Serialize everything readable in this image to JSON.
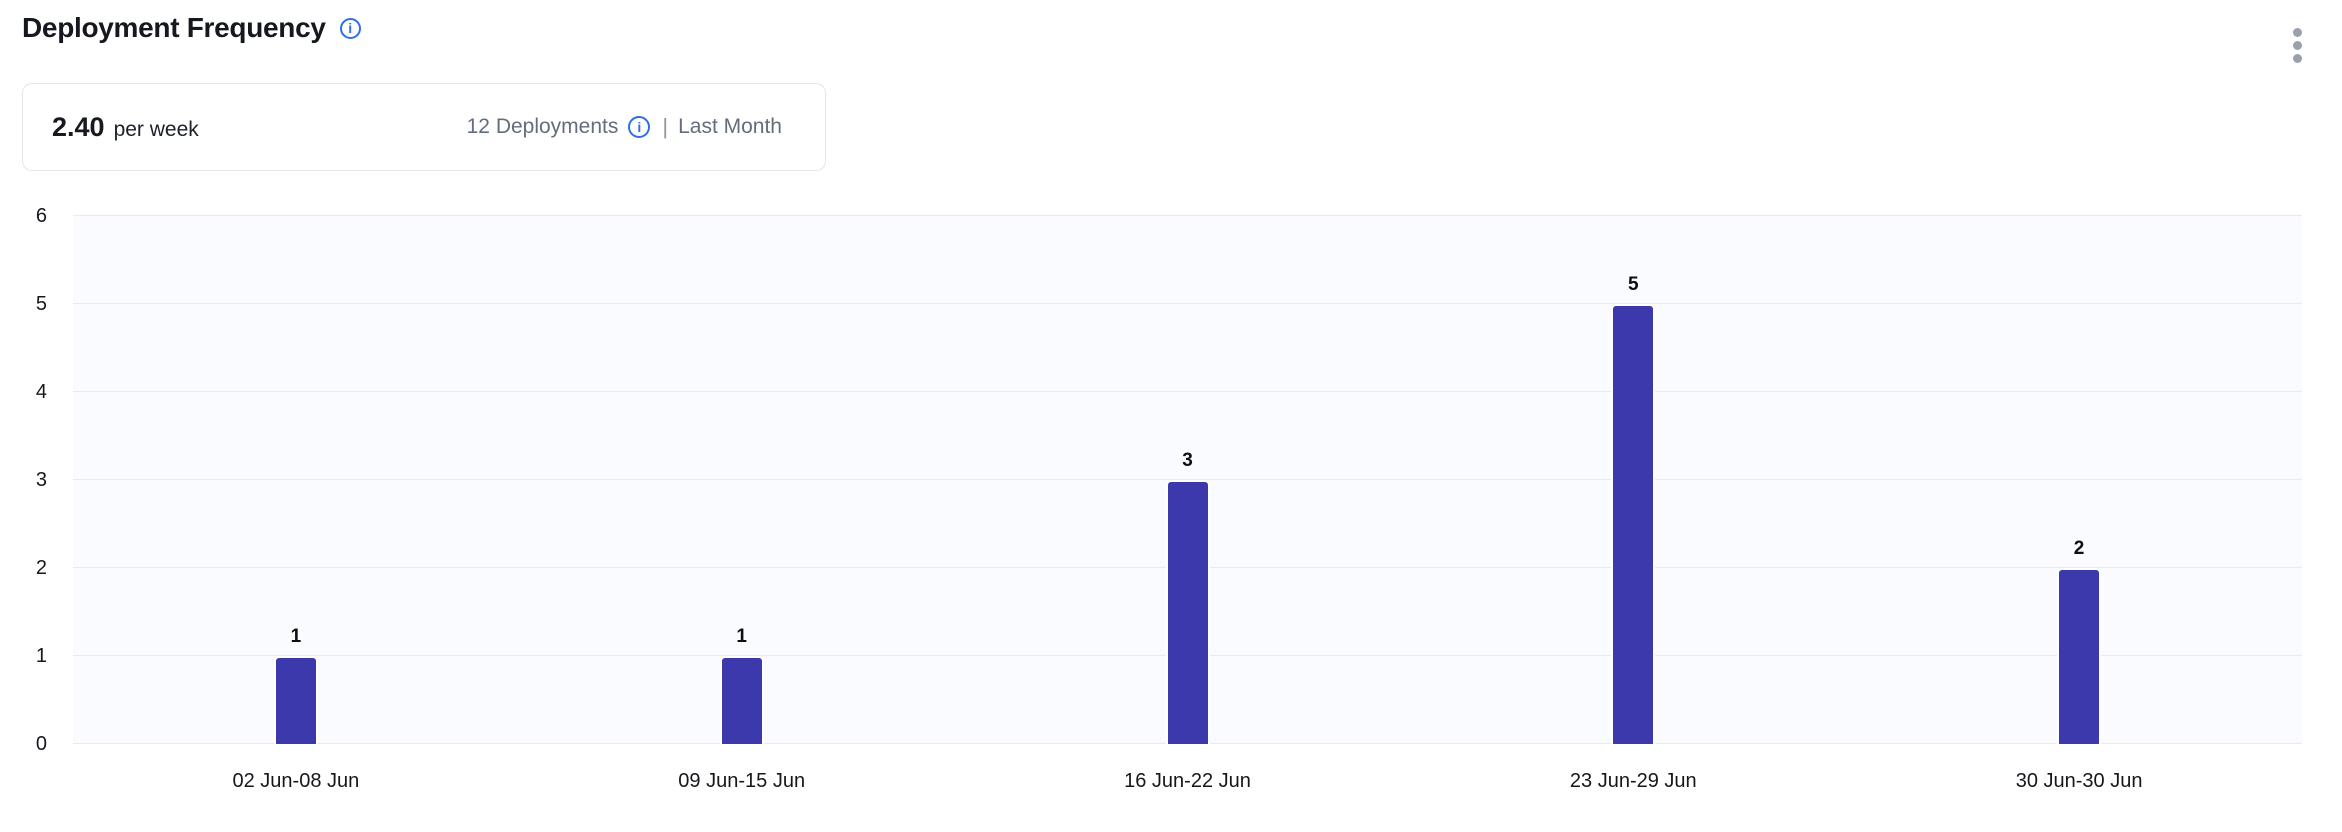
{
  "header": {
    "title": "Deployment Frequency",
    "info_icon_glyph": "i"
  },
  "summary": {
    "value": "2.40",
    "unit": "per week",
    "count_label": "12 Deployments",
    "info_icon_glyph": "i",
    "divider": "|",
    "period_label": "Last Month"
  },
  "colors": {
    "bar": "#3b39ac",
    "accent_blue": "#2e6ee8",
    "plot_background": "#fafbfe",
    "gridline": "#e7eaef",
    "muted_text": "#646d7d",
    "kebab_dots": "#9ba0ae"
  },
  "chart_data": {
    "type": "bar",
    "title": "Deployment Frequency",
    "categories": [
      "02 Jun-08 Jun",
      "09 Jun-15 Jun",
      "16 Jun-22 Jun",
      "23 Jun-29 Jun",
      "30 Jun-30 Jun"
    ],
    "values": [
      1,
      1,
      3,
      5,
      2
    ],
    "xlabel": "",
    "ylabel": "",
    "ylim": [
      0,
      6
    ],
    "ytick_step": 1,
    "grid": true,
    "value_labels": true,
    "legend": "none"
  }
}
